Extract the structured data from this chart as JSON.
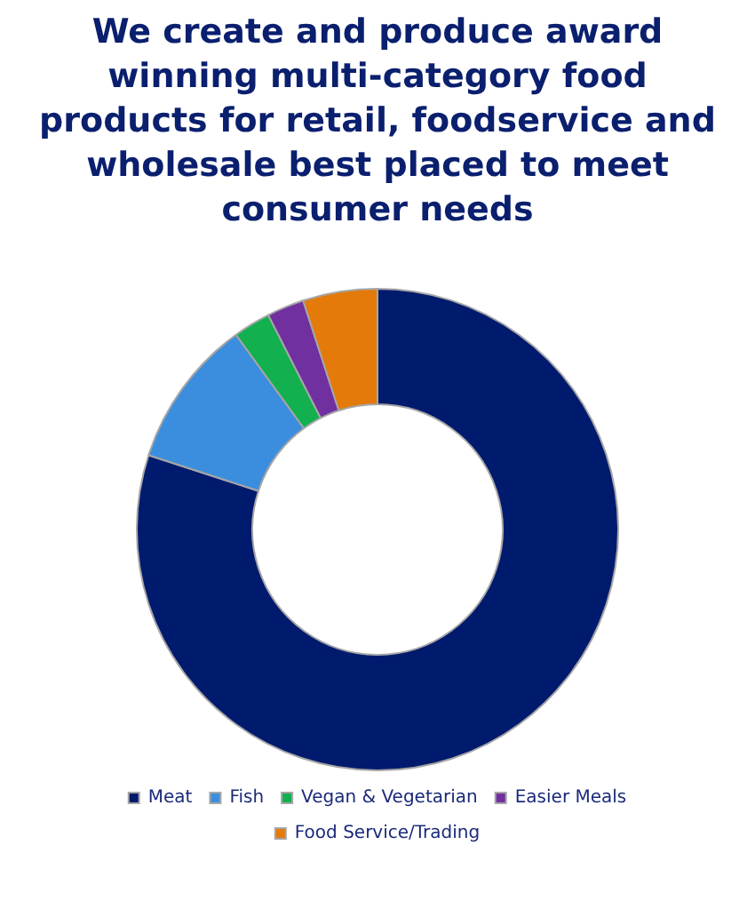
{
  "chart_data": {
    "type": "donut",
    "title": "We create and produce award winning multi-category food products for retail, foodservice and wholesale best placed to meet consumer needs",
    "categories": [
      "Meat",
      "Fish",
      "Vegan & Vegetarian",
      "Easier Meals",
      "Food Service/Trading"
    ],
    "values": [
      80,
      10,
      2.5,
      2.5,
      5
    ],
    "colors": [
      "#001a6e",
      "#3b8ede",
      "#12b04f",
      "#7030a0",
      "#e47a0a"
    ],
    "legend": "bottom"
  }
}
